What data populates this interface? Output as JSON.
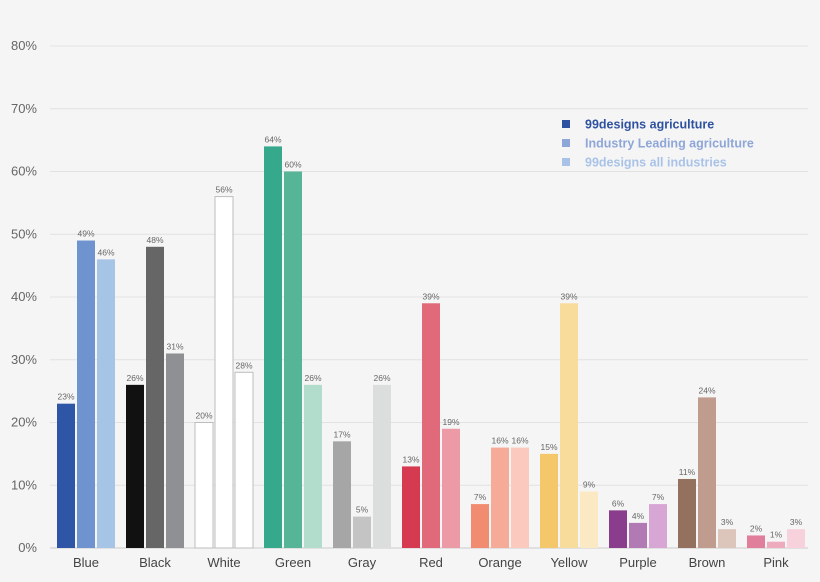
{
  "chart_data": {
    "type": "bar",
    "categories": [
      "Blue",
      "Black",
      "White",
      "Green",
      "Gray",
      "Red",
      "Orange",
      "Yellow",
      "Purple",
      "Brown",
      "Pink"
    ],
    "series": [
      {
        "name": "99designs agriculture",
        "values": [
          23,
          26,
          20,
          64,
          17,
          13,
          7,
          15,
          6,
          11,
          2
        ]
      },
      {
        "name": "Industry Leading agriculture",
        "values": [
          49,
          48,
          56,
          60,
          5,
          39,
          16,
          39,
          4,
          24,
          1
        ]
      },
      {
        "name": "99designs all industries",
        "values": [
          46,
          31,
          28,
          26,
          26,
          19,
          16,
          9,
          7,
          3,
          3
        ]
      }
    ],
    "ylim": [
      0,
      80
    ],
    "yticks": [
      0,
      10,
      20,
      30,
      40,
      50,
      60,
      70,
      80
    ],
    "ytick_labels": [
      "0%",
      "10%",
      "20%",
      "30%",
      "40%",
      "50%",
      "60%",
      "70%",
      "80%"
    ],
    "value_suffix": "%",
    "grid": true,
    "legend_position": "top-right",
    "legend_colors": [
      "#2f52a0",
      "#8ea6d8",
      "#a9c3e8"
    ],
    "bar_colors": [
      [
        "#2f55a6",
        "#6f93cf",
        "#a6c4e6"
      ],
      [
        "#111111",
        "#666666",
        "#8f9094"
      ],
      [
        "#ffffff",
        "#ffffff",
        "#ffffff"
      ],
      [
        "#36a88c",
        "#55b596",
        "#b2dccb"
      ],
      [
        "#a6a6a6",
        "#c4c4c4",
        "#dcdddd"
      ],
      [
        "#d63a50",
        "#e06a7a",
        "#eb9aa6"
      ],
      [
        "#f18c70",
        "#f6aa98",
        "#fbc9bd"
      ],
      [
        "#f4c76b",
        "#f8dc9b",
        "#fbe9c3"
      ],
      [
        "#8a3d8c",
        "#b27ab4",
        "#d8a6d4"
      ],
      [
        "#94705f",
        "#bf9c8e",
        "#dcc6bc"
      ],
      [
        "#e07e9b",
        "#efabbe",
        "#f7d1dc"
      ]
    ]
  }
}
